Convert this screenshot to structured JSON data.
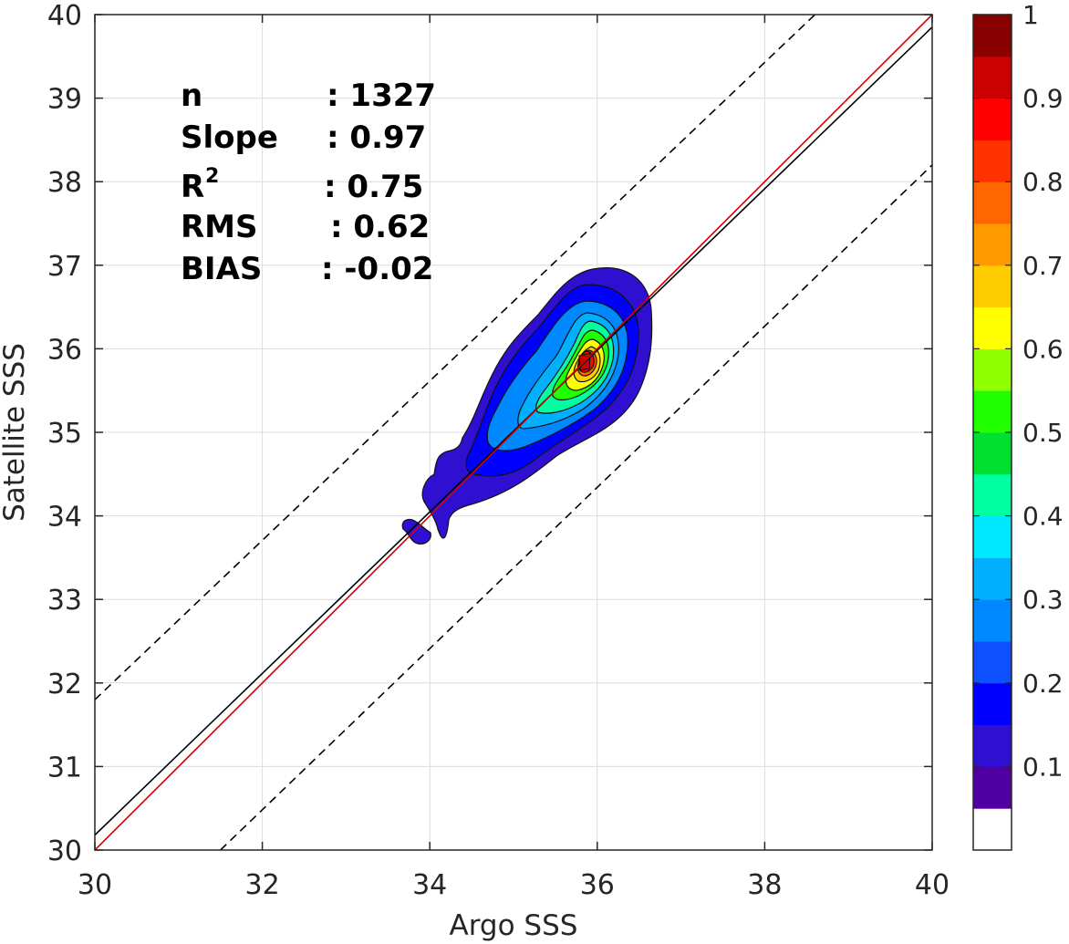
{
  "chart_data": {
    "type": "contour",
    "xlabel": "Argo SSS",
    "ylabel": "Satellite SSS",
    "xlim": [
      30,
      40
    ],
    "ylim": [
      30,
      40
    ],
    "xticks": [
      "30",
      "32",
      "34",
      "36",
      "38",
      "40"
    ],
    "yticks": [
      "30",
      "31",
      "32",
      "33",
      "34",
      "35",
      "36",
      "37",
      "38",
      "39",
      "40"
    ],
    "grid": true,
    "reference_lines": {
      "one_to_one": {
        "color": "#d00000",
        "from": [
          30,
          30
        ],
        "to": [
          40,
          40
        ]
      },
      "regression": {
        "color": "#000000",
        "from": [
          30,
          30.18
        ],
        "to": [
          40,
          39.85
        ]
      },
      "bounds_dashed": [
        {
          "from": [
            30,
            31.8
          ],
          "to": [
            38.6,
            40
          ]
        },
        {
          "from": [
            31.5,
            30
          ],
          "to": [
            40,
            38.2
          ]
        }
      ]
    },
    "density_peak": [
      35.85,
      35.85
    ],
    "stats": [
      {
        "label": "n",
        "value": ": 1327"
      },
      {
        "label": "Slope",
        "value": ": 0.97"
      },
      {
        "label": "R",
        "sup": "2",
        "value": ": 0.75"
      },
      {
        "label": "RMS",
        "value": ": 0.62"
      },
      {
        "label": "BIAS",
        "value": ": -0.02"
      }
    ],
    "colorbar": {
      "range": [
        0,
        1
      ],
      "ticks": [
        "0.1",
        "0.2",
        "0.3",
        "0.4",
        "0.5",
        "0.6",
        "0.7",
        "0.8",
        "0.9",
        "1"
      ],
      "colors": [
        "#ffffff",
        "#5000a0",
        "#3010d0",
        "#0000ff",
        "#1050ff",
        "#0088ff",
        "#00b0ff",
        "#00e8ff",
        "#00ffa0",
        "#00e030",
        "#20ff00",
        "#90ff00",
        "#ffff00",
        "#ffcc00",
        "#ff9900",
        "#ff6600",
        "#ff3300",
        "#ff0000",
        "#cc0000",
        "#880000"
      ]
    }
  }
}
